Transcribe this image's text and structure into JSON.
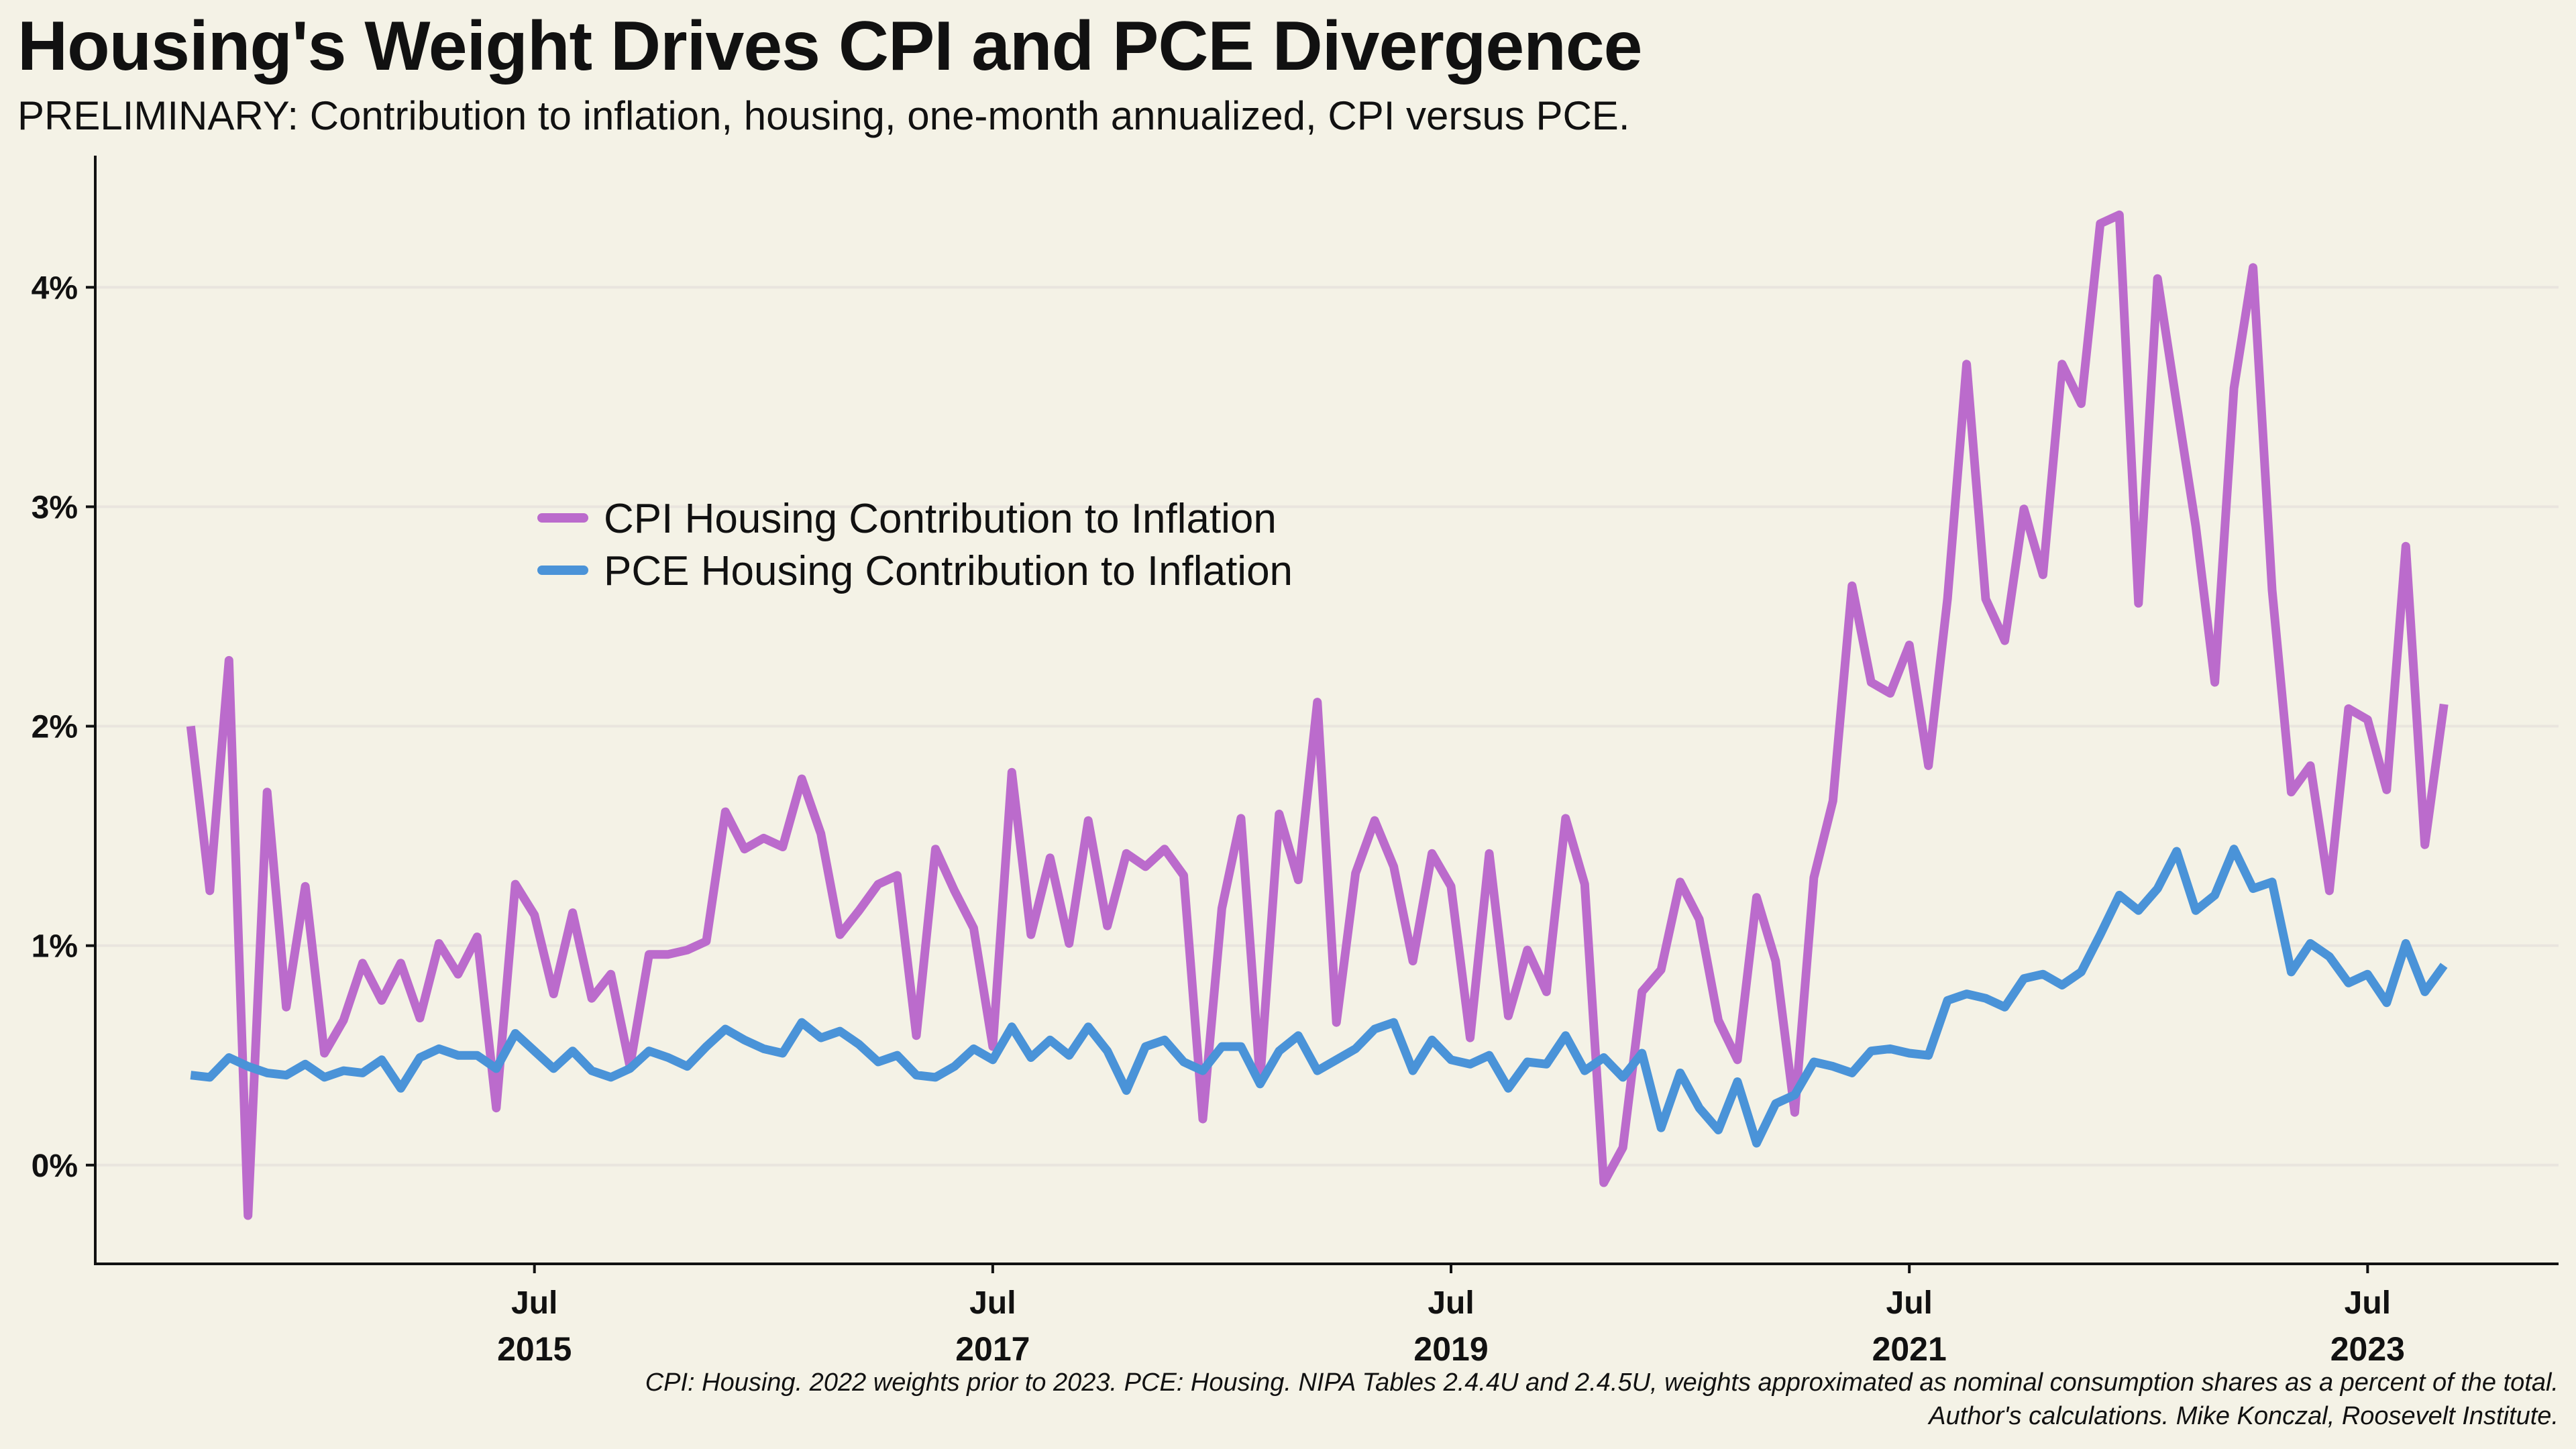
{
  "title": "Housing's Weight Drives CPI and PCE Divergence",
  "subtitle": "PRELIMINARY: Contribution to inflation, housing, one-month annualized, CPI versus PCE.",
  "caption": {
    "line1": "CPI: Housing. 2022 weights prior to 2023. PCE: Housing. NIPA Tables 2.4.4U and 2.4.5U, weights approximated as nominal consumption shares as a percent of the total.",
    "line2": "Author's calculations. Mike Konczal, Roosevelt Institute."
  },
  "colors": {
    "cpi": "#bb6bcc",
    "pce": "#4a93d8",
    "background": "#f4f2e6",
    "grid": "#e9e5de",
    "axis": "#111111"
  },
  "chart_data": {
    "type": "line",
    "x_unit": "month",
    "x_start": "2014-01",
    "x_end": "2023-09",
    "xlim": [
      "2013-08",
      "2024-05"
    ],
    "ylim": [
      -0.45,
      4.6
    ],
    "y_ticks": [
      0,
      1,
      2,
      3,
      4
    ],
    "y_tick_labels": [
      "0%",
      "1%",
      "2%",
      "3%",
      "4%"
    ],
    "x_ticks": [
      {
        "date": "2015-07",
        "month": "Jul",
        "year": "2015"
      },
      {
        "date": "2017-07",
        "month": "Jul",
        "year": "2017"
      },
      {
        "date": "2019-07",
        "month": "Jul",
        "year": "2019"
      },
      {
        "date": "2021-07",
        "month": "Jul",
        "year": "2021"
      },
      {
        "date": "2023-07",
        "month": "Jul",
        "year": "2023"
      }
    ],
    "grid": "horizontal",
    "legend_position": "upper-left",
    "series": [
      {
        "name": "CPI Housing Contribution to Inflation",
        "color": "#bb6bcc",
        "values": [
          2.0,
          1.25,
          2.3,
          -0.23,
          1.7,
          0.72,
          1.27,
          0.51,
          0.66,
          0.92,
          0.75,
          0.92,
          0.67,
          1.01,
          0.87,
          1.04,
          0.26,
          1.28,
          1.14,
          0.78,
          1.15,
          0.76,
          0.87,
          0.45,
          0.96,
          0.96,
          0.98,
          1.02,
          1.61,
          1.44,
          1.49,
          1.45,
          1.76,
          1.51,
          1.05,
          1.16,
          1.28,
          1.32,
          0.59,
          1.44,
          1.25,
          1.08,
          0.54,
          1.79,
          1.05,
          1.4,
          1.01,
          1.57,
          1.09,
          1.42,
          1.36,
          1.44,
          1.32,
          0.21,
          1.17,
          1.58,
          0.39,
          1.6,
          1.3,
          2.11,
          0.65,
          1.33,
          1.57,
          1.36,
          0.93,
          1.42,
          1.27,
          0.58,
          1.42,
          0.68,
          0.98,
          0.79,
          1.58,
          1.28,
          -0.08,
          0.08,
          0.79,
          0.89,
          1.29,
          1.12,
          0.66,
          0.48,
          1.22,
          0.93,
          0.24,
          1.31,
          1.66,
          2.64,
          2.2,
          2.15,
          2.37,
          1.82,
          2.58,
          3.65,
          2.58,
          2.39,
          2.99,
          2.69,
          3.65,
          3.47,
          4.29,
          4.33,
          2.56,
          4.04,
          3.47,
          2.91,
          2.2,
          3.54,
          4.09,
          2.62,
          1.7,
          1.82,
          1.25,
          2.08,
          2.03,
          1.71,
          2.82,
          1.46,
          2.1
        ]
      },
      {
        "name": "PCE Housing Contribution to Inflation",
        "color": "#4a93d8",
        "values": [
          0.41,
          0.4,
          0.49,
          0.45,
          0.42,
          0.41,
          0.46,
          0.4,
          0.43,
          0.42,
          0.48,
          0.35,
          0.49,
          0.53,
          0.5,
          0.5,
          0.44,
          0.6,
          0.52,
          0.44,
          0.52,
          0.43,
          0.4,
          0.44,
          0.52,
          0.49,
          0.45,
          0.54,
          0.62,
          0.57,
          0.53,
          0.51,
          0.65,
          0.58,
          0.61,
          0.55,
          0.47,
          0.5,
          0.41,
          0.4,
          0.45,
          0.53,
          0.48,
          0.63,
          0.49,
          0.57,
          0.5,
          0.63,
          0.52,
          0.34,
          0.54,
          0.57,
          0.47,
          0.43,
          0.54,
          0.54,
          0.37,
          0.52,
          0.59,
          0.43,
          0.48,
          0.53,
          0.62,
          0.65,
          0.43,
          0.57,
          0.48,
          0.46,
          0.5,
          0.35,
          0.47,
          0.46,
          0.59,
          0.43,
          0.49,
          0.4,
          0.51,
          0.17,
          0.42,
          0.26,
          0.16,
          0.38,
          0.1,
          0.28,
          0.32,
          0.47,
          0.45,
          0.42,
          0.52,
          0.53,
          0.51,
          0.5,
          0.75,
          0.78,
          0.76,
          0.72,
          0.85,
          0.87,
          0.82,
          0.88,
          1.05,
          1.23,
          1.16,
          1.26,
          1.43,
          1.16,
          1.23,
          1.44,
          1.26,
          1.29,
          0.88,
          1.01,
          0.95,
          0.83,
          0.87,
          0.74,
          1.01,
          0.79,
          0.91
        ]
      }
    ]
  }
}
